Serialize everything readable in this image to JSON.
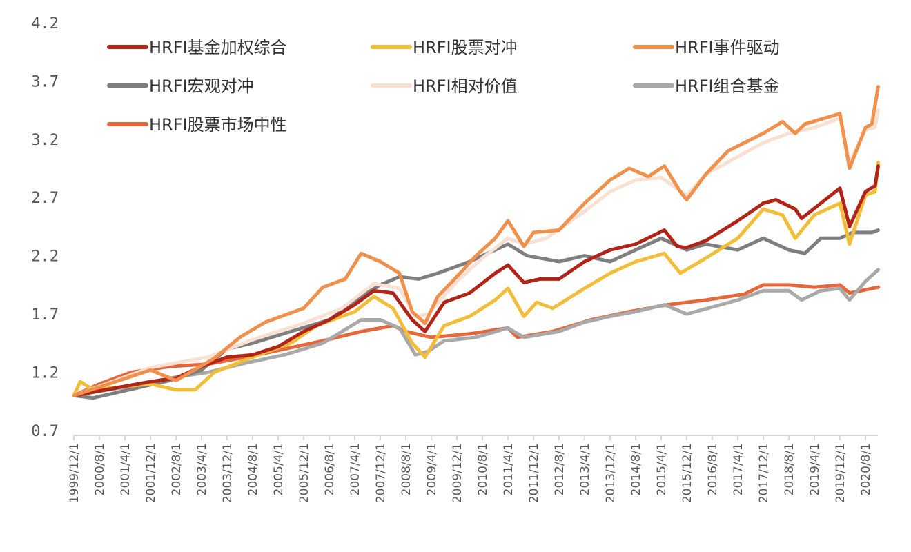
{
  "chart_data": {
    "type": "line",
    "title": "",
    "xlabel": "",
    "ylabel": "",
    "ylim": [
      0.7,
      4.2
    ],
    "yticks": [
      "0.7",
      "1.2",
      "1.7",
      "2.2",
      "2.7",
      "3.2",
      "3.7",
      "4.2"
    ],
    "xticks": [
      "1999/12/1",
      "2000/8/1",
      "2001/4/1",
      "2001/12/1",
      "2002/8/1",
      "2003/4/1",
      "2003/12/1",
      "2004/8/1",
      "2005/4/1",
      "2005/12/1",
      "2006/8/1",
      "2007/4/1",
      "2007/12/1",
      "2008/8/1",
      "2009/4/1",
      "2009/12/1",
      "2010/8/1",
      "2011/4/1",
      "2011/12/1",
      "2012/8/1",
      "2013/4/1",
      "2013/12/1",
      "2014/8/1",
      "2015/4/1",
      "2015/12/1",
      "2016/8/1",
      "2017/4/1",
      "2017/12/1",
      "2018/8/1",
      "2019/4/1",
      "2019/12/1",
      "2020/8/1"
    ],
    "grid": false,
    "legend_position": "top",
    "series": [
      {
        "name": "HRFI基金加权综合",
        "color": "#B22418",
        "x": [
          "1999-12",
          "2001-12",
          "2002-08",
          "2003-04",
          "2003-12",
          "2004-08",
          "2005-04",
          "2005-12",
          "2006-08",
          "2007-04",
          "2007-10",
          "2008-04",
          "2008-10",
          "2009-02",
          "2009-08",
          "2010-04",
          "2010-12",
          "2011-04",
          "2011-09",
          "2012-02",
          "2012-08",
          "2013-04",
          "2013-12",
          "2014-08",
          "2015-05",
          "2015-09",
          "2015-12",
          "2016-06",
          "2017-04",
          "2017-12",
          "2018-04",
          "2018-10",
          "2018-12",
          "2019-06",
          "2019-12",
          "2020-03",
          "2020-08",
          "2020-11",
          "2020-12"
        ],
        "y": [
          1.0,
          1.12,
          1.15,
          1.25,
          1.33,
          1.35,
          1.42,
          1.55,
          1.65,
          1.78,
          1.9,
          1.88,
          1.65,
          1.55,
          1.8,
          1.88,
          2.05,
          2.12,
          1.97,
          2.0,
          2.0,
          2.15,
          2.25,
          2.3,
          2.42,
          2.28,
          2.27,
          2.33,
          2.5,
          2.65,
          2.68,
          2.6,
          2.52,
          2.65,
          2.78,
          2.45,
          2.75,
          2.8,
          2.97
        ]
      },
      {
        "name": "HRFI股票对冲",
        "color": "#F2BE3A",
        "x": [
          "1999-12",
          "2000-02",
          "2000-06",
          "2001-12",
          "2002-08",
          "2003-02",
          "2003-08",
          "2004-08",
          "2005-08",
          "2006-04",
          "2007-04",
          "2007-10",
          "2008-04",
          "2008-10",
          "2009-02",
          "2009-08",
          "2010-04",
          "2010-12",
          "2011-04",
          "2011-09",
          "2012-01",
          "2012-06",
          "2013-04",
          "2013-12",
          "2014-08",
          "2015-05",
          "2015-10",
          "2016-06",
          "2017-04",
          "2017-12",
          "2018-06",
          "2018-10",
          "2019-04",
          "2019-12",
          "2020-03",
          "2020-08",
          "2020-11",
          "2020-12"
        ],
        "y": [
          1.0,
          1.12,
          1.05,
          1.1,
          1.05,
          1.05,
          1.2,
          1.33,
          1.45,
          1.6,
          1.72,
          1.85,
          1.75,
          1.45,
          1.33,
          1.6,
          1.68,
          1.82,
          1.92,
          1.68,
          1.8,
          1.75,
          1.92,
          2.05,
          2.15,
          2.22,
          2.05,
          2.18,
          2.35,
          2.6,
          2.55,
          2.35,
          2.55,
          2.65,
          2.3,
          2.72,
          2.75,
          3.0
        ]
      },
      {
        "name": "HRFI事件驱动",
        "color": "#F0904A",
        "x": [
          "1999-12",
          "2001-12",
          "2002-08",
          "2003-08",
          "2004-04",
          "2004-12",
          "2005-12",
          "2006-06",
          "2007-01",
          "2007-06",
          "2007-12",
          "2008-06",
          "2008-10",
          "2009-02",
          "2009-06",
          "2010-01",
          "2010-06",
          "2010-12",
          "2011-04",
          "2011-09",
          "2011-12",
          "2012-08",
          "2013-04",
          "2013-12",
          "2014-06",
          "2014-12",
          "2015-05",
          "2015-10",
          "2015-12",
          "2016-06",
          "2017-01",
          "2017-12",
          "2018-06",
          "2018-10",
          "2019-01",
          "2019-12",
          "2020-03",
          "2020-08",
          "2020-10",
          "2020-12"
        ],
        "y": [
          1.0,
          1.22,
          1.13,
          1.32,
          1.5,
          1.63,
          1.75,
          1.93,
          2.0,
          2.22,
          2.15,
          2.05,
          1.72,
          1.62,
          1.85,
          2.05,
          2.2,
          2.35,
          2.5,
          2.28,
          2.4,
          2.42,
          2.65,
          2.85,
          2.95,
          2.88,
          2.97,
          2.75,
          2.68,
          2.9,
          3.1,
          3.25,
          3.35,
          3.25,
          3.33,
          3.42,
          2.95,
          3.3,
          3.33,
          3.65
        ]
      },
      {
        "name": "HRFI宏观对冲",
        "color": "#7F7F7F",
        "x": [
          "1999-12",
          "2000-06",
          "2001-02",
          "2002-06",
          "2003-04",
          "2003-12",
          "2004-08",
          "2005-08",
          "2006-08",
          "2007-06",
          "2007-12",
          "2008-06",
          "2008-12",
          "2009-06",
          "2010-04",
          "2010-12",
          "2011-04",
          "2011-10",
          "2012-08",
          "2013-04",
          "2013-12",
          "2014-08",
          "2015-04",
          "2015-12",
          "2016-06",
          "2017-04",
          "2017-12",
          "2018-08",
          "2019-01",
          "2019-06",
          "2019-12",
          "2020-04",
          "2020-10",
          "2020-12"
        ],
        "y": [
          1.0,
          0.98,
          1.03,
          1.13,
          1.22,
          1.4,
          1.45,
          1.55,
          1.65,
          1.85,
          1.95,
          2.02,
          2.0,
          2.05,
          2.15,
          2.25,
          2.3,
          2.2,
          2.15,
          2.2,
          2.15,
          2.25,
          2.35,
          2.25,
          2.3,
          2.25,
          2.35,
          2.25,
          2.22,
          2.35,
          2.35,
          2.4,
          2.4,
          2.42
        ]
      },
      {
        "name": "HRFI相对价值",
        "color": "#F9E0D2",
        "x": [
          "1999-12",
          "2001-12",
          "2003-06",
          "2004-08",
          "2005-12",
          "2006-12",
          "2007-10",
          "2008-06",
          "2008-11",
          "2009-03",
          "2009-12",
          "2010-08",
          "2011-04",
          "2011-09",
          "2012-04",
          "2013-04",
          "2013-12",
          "2014-08",
          "2015-04",
          "2015-12",
          "2016-06",
          "2017-04",
          "2017-12",
          "2018-08",
          "2019-04",
          "2019-12",
          "2020-03",
          "2020-08",
          "2020-11",
          "2020-12"
        ],
        "y": [
          1.0,
          1.24,
          1.33,
          1.48,
          1.62,
          1.75,
          1.96,
          1.92,
          1.68,
          1.7,
          1.98,
          2.18,
          2.35,
          2.3,
          2.35,
          2.58,
          2.75,
          2.85,
          2.87,
          2.72,
          2.9,
          3.05,
          3.17,
          3.25,
          3.3,
          3.38,
          3.0,
          3.28,
          3.3,
          3.45
        ]
      },
      {
        "name": "HRFI组合基金",
        "color": "#A9A9A9",
        "x": [
          "1999-12",
          "2000-06",
          "2001-06",
          "2002-06",
          "2003-06",
          "2004-06",
          "2005-06",
          "2006-06",
          "2007-06",
          "2007-12",
          "2008-06",
          "2008-11",
          "2009-03",
          "2009-08",
          "2010-06",
          "2011-04",
          "2011-09",
          "2012-08",
          "2013-04",
          "2013-12",
          "2014-08",
          "2015-05",
          "2015-12",
          "2016-08",
          "2017-04",
          "2017-12",
          "2018-08",
          "2018-12",
          "2019-06",
          "2019-12",
          "2020-03",
          "2020-08",
          "2020-12"
        ],
        "y": [
          1.0,
          1.03,
          1.08,
          1.15,
          1.2,
          1.28,
          1.35,
          1.45,
          1.65,
          1.65,
          1.58,
          1.35,
          1.38,
          1.47,
          1.5,
          1.58,
          1.5,
          1.55,
          1.63,
          1.68,
          1.72,
          1.78,
          1.7,
          1.76,
          1.82,
          1.9,
          1.9,
          1.82,
          1.9,
          1.92,
          1.82,
          1.98,
          2.08
        ]
      },
      {
        "name": "HRFI股票市场中性",
        "color": "#E5673A",
        "x": [
          "1999-12",
          "2000-08",
          "2001-06",
          "2002-06",
          "2003-06",
          "2004-06",
          "2005-06",
          "2006-06",
          "2007-06",
          "2008-04",
          "2008-08",
          "2009-04",
          "2010-04",
          "2011-04",
          "2011-07",
          "2012-06",
          "2013-06",
          "2014-06",
          "2015-06",
          "2016-06",
          "2017-06",
          "2017-12",
          "2018-08",
          "2019-04",
          "2019-12",
          "2020-03",
          "2020-12"
        ],
        "y": [
          1.0,
          1.1,
          1.2,
          1.25,
          1.27,
          1.33,
          1.4,
          1.47,
          1.55,
          1.6,
          1.55,
          1.5,
          1.53,
          1.58,
          1.5,
          1.55,
          1.65,
          1.72,
          1.78,
          1.82,
          1.87,
          1.95,
          1.95,
          1.93,
          1.95,
          1.88,
          1.93
        ]
      }
    ]
  }
}
